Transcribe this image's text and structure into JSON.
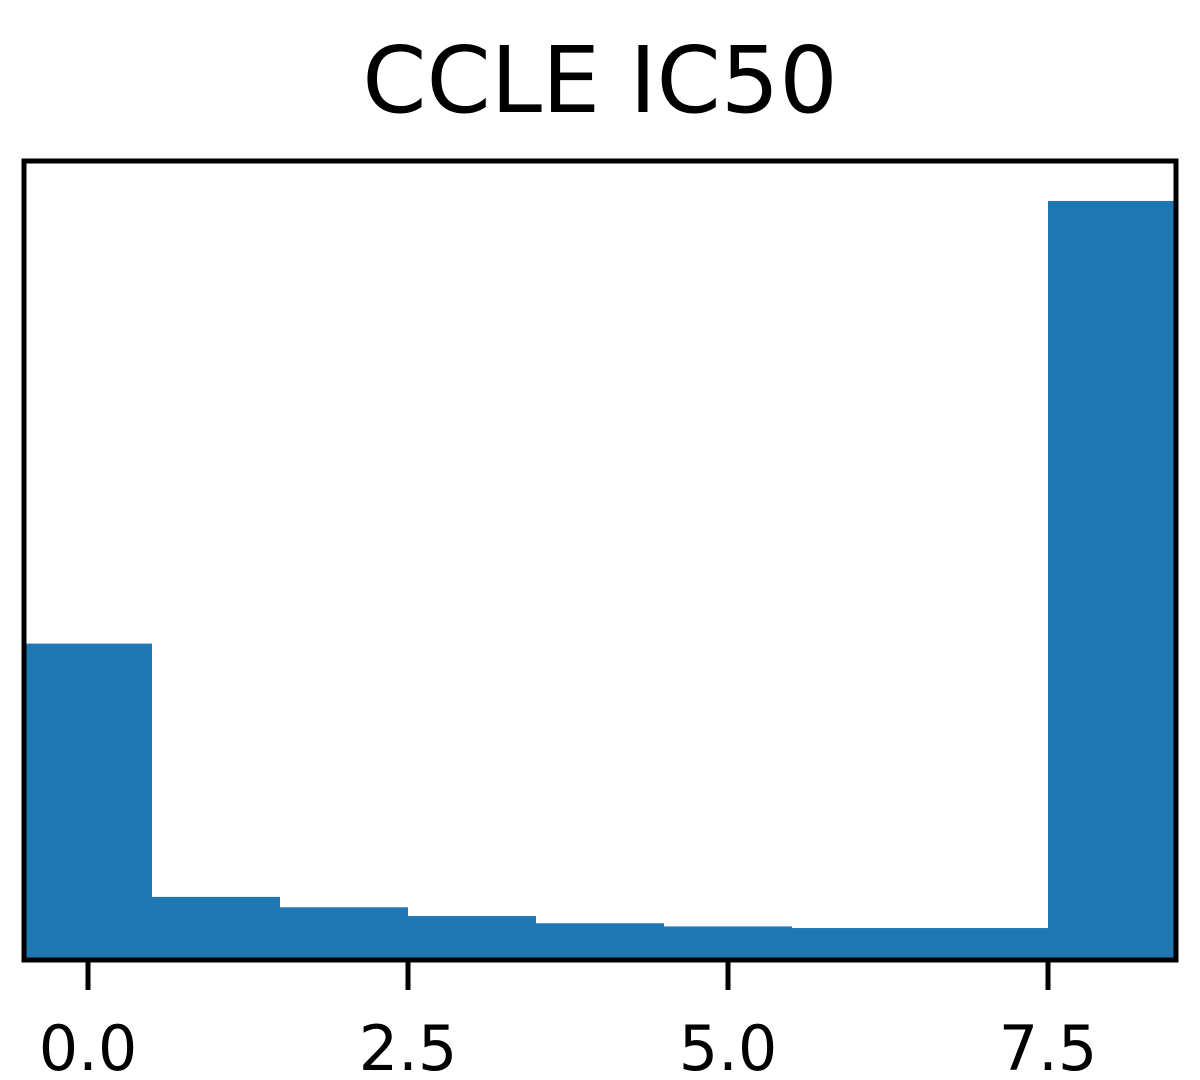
{
  "chart_data": {
    "type": "bar",
    "title": "CCLE IC50",
    "xlabel": "",
    "ylabel": "",
    "bin_width": 1,
    "categories": [
      "0",
      "1",
      "2",
      "3",
      "4",
      "5",
      "6",
      "7",
      "8"
    ],
    "x": [
      0,
      1,
      2,
      3,
      4,
      5,
      6,
      7,
      8
    ],
    "values": [
      39.6,
      7.9,
      6.6,
      5.5,
      4.6,
      4.2,
      4.0,
      4.0,
      95.0
    ],
    "xlim": [
      -0.5,
      8.5
    ],
    "ylim": [
      0,
      100
    ],
    "xticks": [
      0,
      2.5,
      5,
      7.5
    ],
    "xtick_labels": [
      "0.0",
      "2.5",
      "5.0",
      "7.5"
    ],
    "yticks_visible": false,
    "grid": false,
    "legend": "none",
    "bar_color": "#1f77b4"
  }
}
